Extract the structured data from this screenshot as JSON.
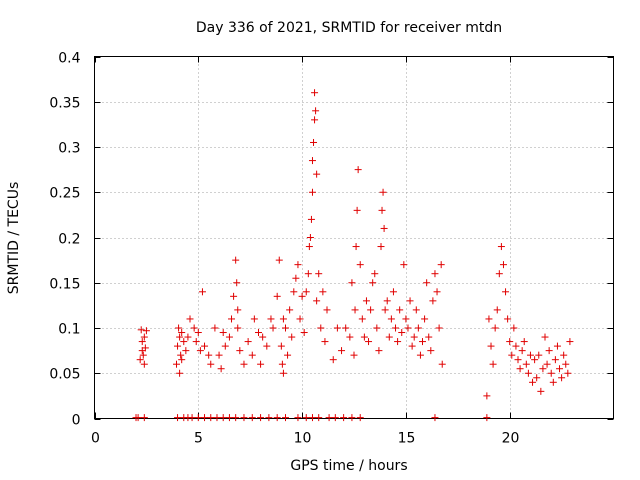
{
  "chart_data": {
    "type": "scatter",
    "title": "Day 336 of 2021, SRMTID for receiver mtdn",
    "xlabel": "GPS time / hours",
    "ylabel": "SRMTID / TECUs",
    "xlim": [
      0,
      25
    ],
    "ylim": [
      0,
      0.4
    ],
    "xticks": [
      0,
      5,
      10,
      15,
      20
    ],
    "xtick_labels": [
      "0",
      "5",
      "10",
      "15",
      "20"
    ],
    "yticks": [
      0,
      0.05,
      0.1,
      0.15,
      0.2,
      0.25,
      0.3,
      0.35,
      0.4
    ],
    "ytick_labels": [
      "0",
      "0.05",
      "0.1",
      "0.15",
      "0.2",
      "0.25",
      "0.3",
      "0.35",
      "0.4"
    ],
    "grid": true,
    "marker": "+",
    "marker_color": "#e00000",
    "series": [
      {
        "name": "SRMTID",
        "x": [
          2.2,
          2.25,
          2.3,
          2.3,
          2.35,
          2.4,
          2.4,
          2.45,
          2.5,
          3.95,
          4.0,
          4.05,
          4.1,
          4.1,
          4.15,
          4.2,
          4.2,
          4.3,
          4.4,
          4.5,
          4.6,
          4.8,
          4.9,
          5.0,
          5.1,
          5.2,
          5.3,
          5.5,
          5.6,
          5.8,
          6.0,
          6.1,
          6.2,
          6.3,
          6.5,
          6.6,
          6.7,
          6.8,
          6.85,
          6.9,
          6.9,
          7.0,
          7.2,
          7.4,
          7.6,
          7.7,
          7.9,
          8.0,
          8.1,
          8.3,
          8.5,
          8.6,
          8.8,
          8.9,
          9.0,
          9.05,
          9.1,
          9.1,
          9.2,
          9.3,
          9.4,
          9.5,
          9.6,
          9.7,
          9.8,
          9.9,
          10.0,
          10.1,
          10.2,
          10.3,
          10.35,
          10.4,
          10.45,
          10.5,
          10.5,
          10.55,
          10.6,
          10.6,
          10.65,
          10.7,
          10.7,
          10.8,
          10.9,
          11.0,
          11.1,
          11.2,
          11.5,
          11.7,
          11.9,
          12.1,
          12.3,
          12.4,
          12.5,
          12.55,
          12.6,
          12.65,
          12.7,
          12.8,
          12.9,
          13.0,
          13.1,
          13.2,
          13.3,
          13.4,
          13.5,
          13.6,
          13.7,
          13.8,
          13.85,
          13.9,
          13.95,
          14.0,
          14.1,
          14.2,
          14.3,
          14.4,
          14.5,
          14.6,
          14.7,
          14.8,
          14.9,
          15.0,
          15.1,
          15.2,
          15.3,
          15.4,
          15.5,
          15.6,
          15.7,
          15.8,
          15.9,
          16.0,
          16.1,
          16.2,
          16.3,
          16.4,
          16.5,
          16.6,
          16.7,
          16.75,
          18.9,
          19.0,
          19.1,
          19.2,
          19.3,
          19.4,
          19.5,
          19.6,
          19.7,
          19.8,
          19.9,
          20.0,
          20.1,
          20.2,
          20.3,
          20.4,
          20.5,
          20.6,
          20.7,
          20.8,
          20.9,
          21.0,
          21.1,
          21.2,
          21.3,
          21.4,
          21.5,
          21.6,
          21.7,
          21.8,
          21.9,
          22.0,
          22.1,
          22.2,
          22.3,
          22.4,
          22.5,
          22.6,
          22.7,
          22.8,
          22.9,
          2.0,
          2.1,
          2.4,
          4.0,
          4.3,
          4.5,
          4.7,
          5.0,
          5.3,
          5.6,
          5.9,
          6.2,
          6.5,
          6.8,
          7.2,
          7.6,
          8.0,
          8.4,
          8.8,
          9.2,
          9.8,
          10.2,
          10.5,
          10.8,
          11.3,
          11.6,
          12.0,
          12.4,
          12.8,
          16.4,
          18.9
        ],
        "y": [
          0.065,
          0.098,
          0.075,
          0.085,
          0.07,
          0.06,
          0.09,
          0.078,
          0.097,
          0.06,
          0.08,
          0.1,
          0.05,
          0.09,
          0.07,
          0.095,
          0.065,
          0.085,
          0.075,
          0.09,
          0.11,
          0.1,
          0.085,
          0.095,
          0.075,
          0.14,
          0.08,
          0.07,
          0.06,
          0.1,
          0.07,
          0.055,
          0.095,
          0.08,
          0.09,
          0.11,
          0.135,
          0.175,
          0.15,
          0.12,
          0.1,
          0.075,
          0.06,
          0.085,
          0.07,
          0.11,
          0.095,
          0.06,
          0.09,
          0.08,
          0.11,
          0.1,
          0.135,
          0.175,
          0.08,
          0.06,
          0.05,
          0.11,
          0.1,
          0.07,
          0.12,
          0.09,
          0.14,
          0.155,
          0.17,
          0.11,
          0.135,
          0.095,
          0.14,
          0.16,
          0.19,
          0.2,
          0.22,
          0.25,
          0.285,
          0.305,
          0.33,
          0.36,
          0.34,
          0.27,
          0.13,
          0.16,
          0.1,
          0.14,
          0.085,
          0.12,
          0.065,
          0.1,
          0.075,
          0.1,
          0.09,
          0.15,
          0.07,
          0.12,
          0.19,
          0.23,
          0.275,
          0.17,
          0.11,
          0.09,
          0.13,
          0.085,
          0.12,
          0.15,
          0.16,
          0.1,
          0.075,
          0.19,
          0.23,
          0.25,
          0.21,
          0.12,
          0.13,
          0.09,
          0.11,
          0.14,
          0.1,
          0.085,
          0.12,
          0.095,
          0.17,
          0.11,
          0.1,
          0.13,
          0.08,
          0.09,
          0.12,
          0.1,
          0.07,
          0.085,
          0.11,
          0.15,
          0.09,
          0.075,
          0.13,
          0.16,
          0.14,
          0.1,
          0.17,
          0.06,
          0.025,
          0.11,
          0.08,
          0.06,
          0.1,
          0.12,
          0.16,
          0.19,
          0.17,
          0.14,
          0.11,
          0.085,
          0.07,
          0.1,
          0.08,
          0.065,
          0.055,
          0.075,
          0.085,
          0.06,
          0.05,
          0.07,
          0.04,
          0.065,
          0.045,
          0.07,
          0.03,
          0.055,
          0.09,
          0.06,
          0.075,
          0.05,
          0.04,
          0.065,
          0.08,
          0.055,
          0.045,
          0.07,
          0.06,
          0.05,
          0.085,
          0.001,
          0.001,
          0.001,
          0.001,
          0.001,
          0.001,
          0.001,
          0.001,
          0.001,
          0.001,
          0.001,
          0.001,
          0.001,
          0.001,
          0.001,
          0.001,
          0.001,
          0.001,
          0.001,
          0.001,
          0.001,
          0.001,
          0.001,
          0.001,
          0.001,
          0.001,
          0.001,
          0.001,
          0.001,
          0.001,
          0.001
        ]
      }
    ]
  }
}
